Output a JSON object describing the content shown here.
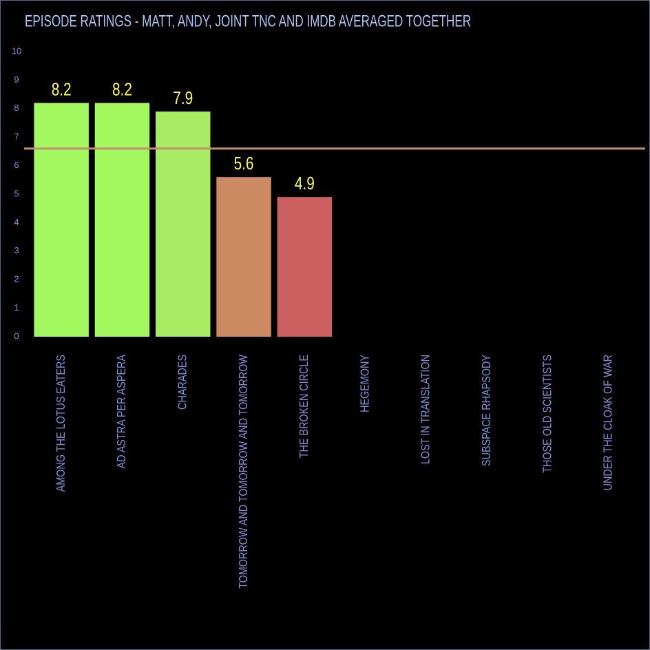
{
  "chart_data": {
    "type": "bar",
    "title": "EPISODE RATINGS - MATT, ANDY, JOINT TNC AND IMDB AVERAGED TOGETHER",
    "categories": [
      "AMONG THE LOTUS EATERS",
      "AD ASTRA PER ASPERA",
      "CHARADES",
      "TOMORROW AND TOMORROW AND TOMORROW",
      "THE BROKEN CIRCLE",
      "HEGEMONY",
      "LOST IN TRANSLATION",
      "SUBSPACE RHAPSODY",
      "THOSE OLD SCIENTISTS",
      "UNDER THE CLOAK OF WAR"
    ],
    "values": [
      8.2,
      8.2,
      7.9,
      5.6,
      4.9,
      null,
      null,
      null,
      null,
      null
    ],
    "colors": [
      "#a3f75f",
      "#a3f75f",
      "#a8ec64",
      "#cc8a62",
      "#cc6060",
      null,
      null,
      null,
      null,
      null
    ],
    "ylim": [
      0,
      10
    ],
    "yticks": [
      0,
      1,
      2,
      3,
      4,
      5,
      6,
      7,
      8,
      9,
      10
    ],
    "reference_line": {
      "value": 6.6,
      "color": "#c09070"
    },
    "grid": false
  }
}
